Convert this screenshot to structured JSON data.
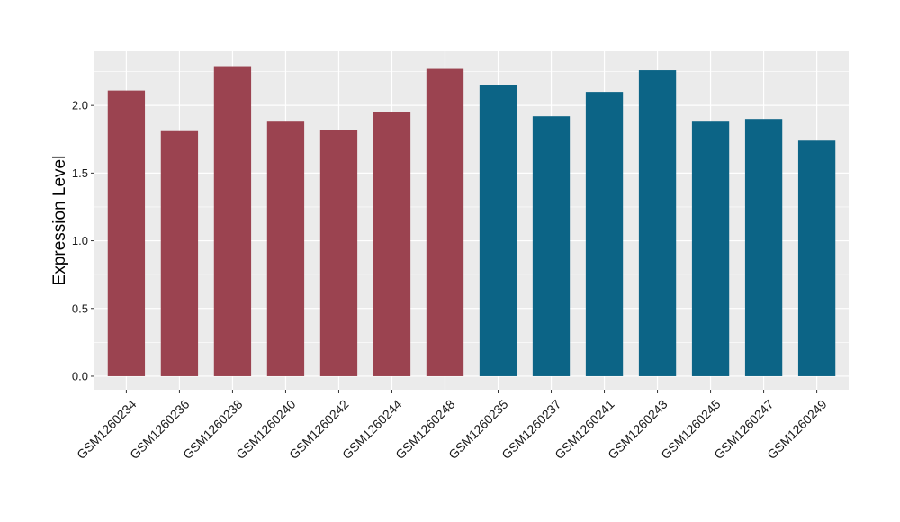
{
  "chart_data": {
    "type": "bar",
    "title": "",
    "xlabel": "",
    "ylabel": "Expression Level",
    "ylim": [
      -0.1,
      2.4
    ],
    "yticks": [
      0.0,
      0.5,
      1.0,
      1.5,
      2.0
    ],
    "ytick_labels": [
      "0.0",
      "0.5",
      "1.0",
      "1.5",
      "2.0"
    ],
    "grid": true,
    "legend": "none",
    "categories": [
      "GSM1260234",
      "GSM1260236",
      "GSM1260238",
      "GSM1260240",
      "GSM1260242",
      "GSM1260244",
      "GSM1260248",
      "GSM1260235",
      "GSM1260237",
      "GSM1260241",
      "GSM1260243",
      "GSM1260245",
      "GSM1260247",
      "GSM1260249"
    ],
    "values": [
      2.11,
      1.81,
      2.29,
      1.88,
      1.82,
      1.95,
      2.27,
      2.15,
      1.92,
      2.1,
      2.26,
      1.88,
      1.9,
      1.74
    ],
    "bar_colors": [
      "#9b4350",
      "#9b4350",
      "#9b4350",
      "#9b4350",
      "#9b4350",
      "#9b4350",
      "#9b4350",
      "#0c6486",
      "#0c6486",
      "#0c6486",
      "#0c6486",
      "#0c6486",
      "#0c6486",
      "#0c6486"
    ],
    "panel_background": "#ebebeb",
    "grid_color": "#ffffff"
  }
}
